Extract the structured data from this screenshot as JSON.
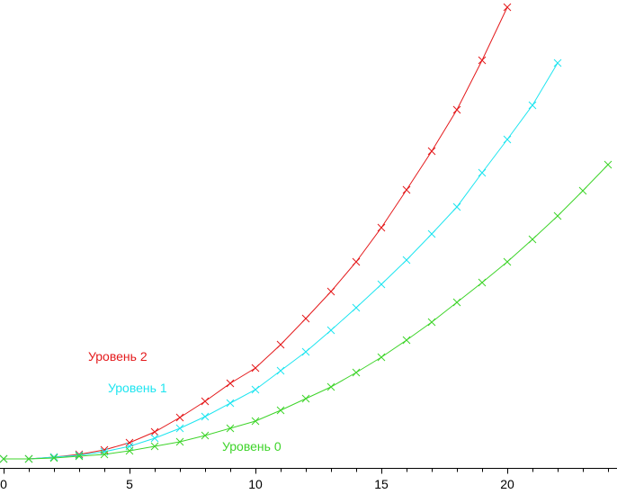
{
  "chart_data": {
    "type": "line",
    "title": "",
    "xlabel": "",
    "ylabel": "",
    "xlim": [
      0,
      24.5
    ],
    "ylim": [
      0,
      510
    ],
    "x_ticks": [
      0,
      5,
      10,
      15,
      20
    ],
    "x_tick_labels": [
      "0",
      "5",
      "10",
      "15",
      "20"
    ],
    "grid": false,
    "marker": "x",
    "series": [
      {
        "name": "Уровень 2",
        "color": "#e41a1c",
        "x": [
          0,
          1,
          2,
          3,
          4,
          5,
          6,
          7,
          8,
          9,
          10,
          11,
          12,
          13,
          14,
          15,
          16,
          17,
          18,
          19,
          20
        ],
        "y": [
          0,
          0,
          2,
          5,
          10,
          18,
          30,
          46,
          64,
          84,
          101,
          127,
          156,
          186,
          219,
          257,
          299,
          342,
          388,
          443,
          502
        ]
      },
      {
        "name": "Уровень 1",
        "color": "#1ee5f0",
        "x": [
          0,
          1,
          2,
          3,
          4,
          5,
          6,
          7,
          8,
          9,
          10,
          11,
          12,
          13,
          14,
          15,
          16,
          17,
          18,
          19,
          20,
          21,
          22
        ],
        "y": [
          0,
          0,
          2,
          4,
          8,
          14,
          23,
          34,
          47,
          62,
          77,
          98,
          119,
          143,
          168,
          194,
          221,
          250,
          280,
          318,
          355,
          393,
          440
        ]
      },
      {
        "name": "Уровень 0",
        "color": "#3ed42a",
        "x": [
          0,
          1,
          2,
          3,
          4,
          5,
          6,
          7,
          8,
          9,
          10,
          11,
          12,
          13,
          14,
          15,
          16,
          17,
          18,
          19,
          20,
          21,
          22,
          23,
          24
        ],
        "y": [
          0,
          0,
          1,
          3,
          5,
          9,
          14,
          19,
          26,
          34,
          42,
          54,
          67,
          80,
          96,
          113,
          132,
          152,
          174,
          196,
          219,
          244,
          270,
          298,
          327
        ]
      }
    ],
    "labels": [
      {
        "text": "Уровень 2",
        "series": 0
      },
      {
        "text": "Уровень 1",
        "series": 1
      },
      {
        "text": "Уровень 0",
        "series": 2
      }
    ]
  }
}
